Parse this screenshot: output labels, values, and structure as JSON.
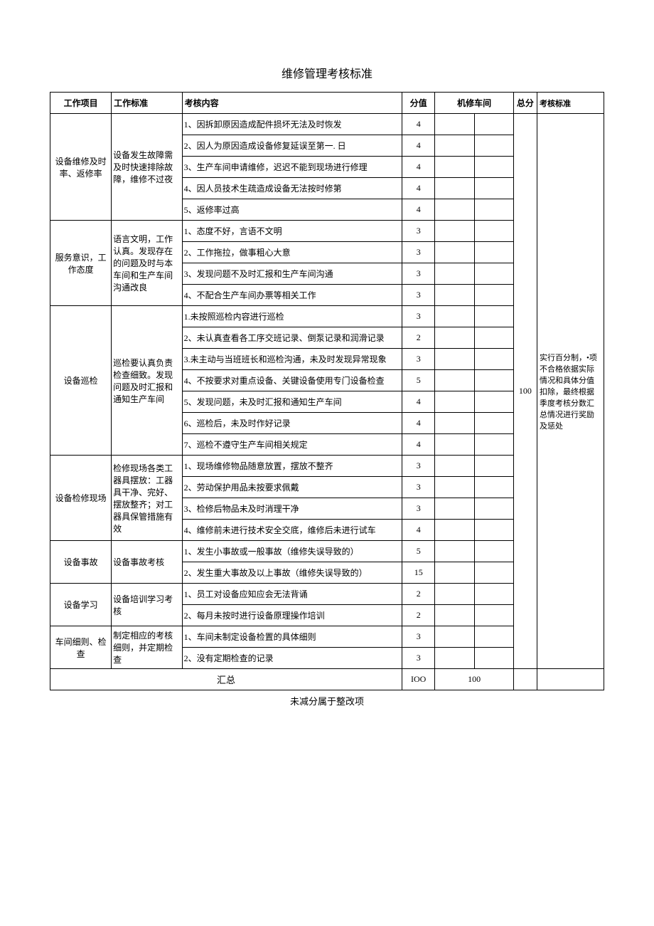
{
  "title": "维修管理考核标准",
  "headers": {
    "project": "工作项目",
    "standard": "工作标准",
    "content": "考核内容",
    "score": "分值",
    "workshop": "机修车间",
    "total": "总分",
    "criteria": "考核标准"
  },
  "sections": [
    {
      "project": "设备维修及时率、返修率",
      "standard": "设备发生故障需及时快速排除故障，维修不过夜",
      "items": [
        {
          "content": "1、因拆卸原因造成配件损坏无法及时恢发",
          "score": "4"
        },
        {
          "content": "2、因人为原因造成设备修复延误至第一. 日",
          "score": "4"
        },
        {
          "content": "3、生产车间申请维修，迟迟不能到现场进行修理",
          "score": "4"
        },
        {
          "content": "4、因人员技术生疏造成设备无法按时修第",
          "score": "4"
        },
        {
          "content": "5、返修率过高",
          "score": "4"
        }
      ]
    },
    {
      "project": "服务意识，工作态度",
      "standard": "语言文明，工作认真。发现存在的问题及时与本车间和生产车间沟通改良",
      "items": [
        {
          "content": "1、态度不好，言语不文明",
          "score": "3"
        },
        {
          "content": "2、工作拖拉，做事粗心大意",
          "score": "3"
        },
        {
          "content": "3、发现问题不及时汇报和生产车间沟通",
          "score": "3"
        },
        {
          "content": "4、不配合生产车间办票等相关工作",
          "score": "3"
        }
      ]
    },
    {
      "project": "设备巡检",
      "standard": "巡检要认真负责检查细致。发现问题及时汇报和通知生产车间",
      "items": [
        {
          "content": "1.未按照巡检内容进行巡检",
          "score": "3"
        },
        {
          "content": "2、未认真查看各工序交班记录、倒泵记录和润滑记录",
          "score": "2"
        },
        {
          "content": "3.未主动与当班班长和巡检沟通，未及时发现异常现象",
          "score": "3"
        },
        {
          "content": "4、不按要求对重点设备、关键设备使用专门设备检查",
          "score": "5"
        },
        {
          "content": "5、发现问题，未及时汇报和通知生产车间",
          "score": "4"
        },
        {
          "content": "6、巡检后，未及时作好记录",
          "score": "4"
        },
        {
          "content": "7、巡检不遵守生产车间相关规定",
          "score": "4"
        }
      ]
    },
    {
      "project": "设备检修现场",
      "standard": "检修现场各类工器具摆放：工器具干净、完好、摆放整齐；对工器具保管措施有效",
      "items": [
        {
          "content": "1、现场维修物品随意放置，摆放不整齐",
          "score": "3"
        },
        {
          "content": "2、劳动保护用品未按要求佩戴",
          "score": "3"
        },
        {
          "content": "3、检修后物品未及时消理干净",
          "score": "3"
        },
        {
          "content": "4、维修前未进行技术安全交底，维修后未进行试车",
          "score": "4"
        }
      ]
    },
    {
      "project": "设备事故",
      "standard": "设备事故考核",
      "items": [
        {
          "content": "1、发生小事故或一般事故（维修失误导致的）",
          "score": "5"
        },
        {
          "content": "2、发生重大事故及以上事故（维修失误导致的）",
          "score": "15"
        }
      ]
    },
    {
      "project": "设备学习",
      "standard": "设备培训学习考核",
      "items": [
        {
          "content": "1、员工对设备应知应会无法背诵",
          "score": "2"
        },
        {
          "content": "2、每月未按时进行设备原理操作培训",
          "score": "2"
        }
      ]
    },
    {
      "project": "车间细则、检查",
      "standard": "制定相应的考核细则，并定期检查",
      "items": [
        {
          "content": "1、车间未制定设备检置的具体细则",
          "score": "3"
        },
        {
          "content": "2、没有定期检查的记录",
          "score": "3"
        }
      ]
    }
  ],
  "total_score": "100",
  "criteria_text": "实行百分制，•项不合格依据实际情况和具体分值扣除，最终根据季度考核分数汇总情况进行奖励及惩处",
  "summary": {
    "label": "汇总",
    "score_total": "IOO",
    "workshop_total": "100"
  },
  "footer": "未减分属于整改项"
}
